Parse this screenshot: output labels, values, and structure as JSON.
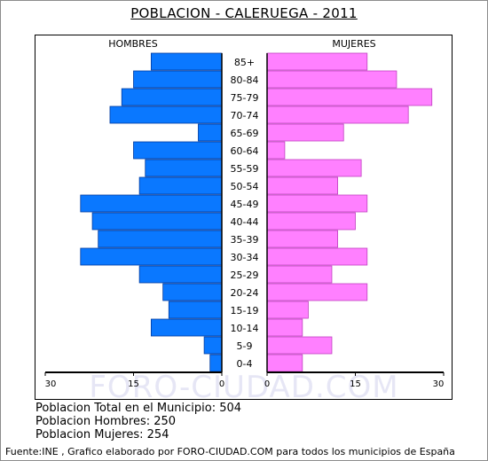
{
  "title": "POBLACION - CALERUEGA - 2011",
  "watermark": "FORO-CIUDAD.COM",
  "chart_data": {
    "type": "bar",
    "orientation": "horizontal",
    "subtype": "population-pyramid",
    "title": "POBLACION - CALERUEGA - 2011",
    "categories": [
      "85+",
      "80-84",
      "75-79",
      "70-74",
      "65-69",
      "60-64",
      "55-59",
      "50-54",
      "45-49",
      "40-44",
      "35-39",
      "30-34",
      "25-29",
      "20-24",
      "15-19",
      "10-14",
      "5-9",
      "0-4"
    ],
    "series": [
      {
        "name": "HOMBRES",
        "color": "#0a78ff",
        "values": [
          12,
          15,
          17,
          19,
          4,
          15,
          13,
          14,
          24,
          22,
          21,
          24,
          14,
          10,
          9,
          12,
          3,
          2
        ]
      },
      {
        "name": "MUJERES",
        "color": "#ff80ff",
        "values": [
          17,
          22,
          28,
          24,
          13,
          3,
          16,
          12,
          17,
          15,
          12,
          17,
          11,
          17,
          7,
          6,
          11,
          6
        ]
      }
    ],
    "xlim": [
      0,
      30
    ],
    "ticks": [
      "30",
      "15",
      "0",
      "0",
      "15",
      "30"
    ],
    "legend": "top"
  },
  "stats": {
    "total": "Poblacion Total en el Municipio: 504",
    "hombres": "Poblacion Hombres: 250",
    "mujeres": "Poblacion Mujeres: 254"
  },
  "footer": "Fuente:INE , Grafico elaborado por FORO-CIUDAD.COM para todos los municipios de España"
}
